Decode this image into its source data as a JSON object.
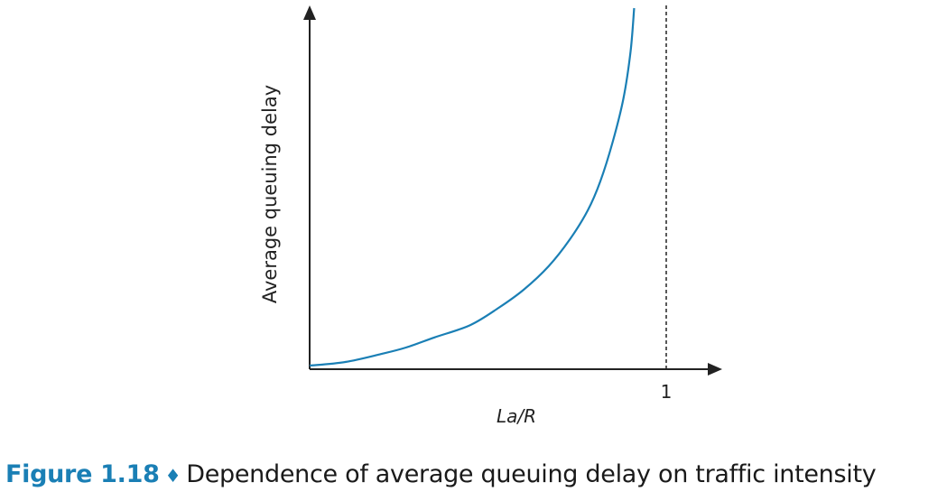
{
  "chart_data": {
    "type": "line",
    "title": "",
    "xlabel": "La/R",
    "ylabel": "Average queuing delay",
    "xlim": [
      0,
      1.16
    ],
    "ylim": [
      0,
      10
    ],
    "x_ticks": [
      {
        "value": 1,
        "label": "1"
      }
    ],
    "vertical_reference_line": {
      "x": 1,
      "style": "dashed"
    },
    "grid": false,
    "series": [
      {
        "color": "#1a7fb5",
        "x": [
          0,
          0.1,
          0.2,
          0.27,
          0.35,
          0.45,
          0.53,
          0.6,
          0.67,
          0.73,
          0.78,
          0.815,
          0.85,
          0.88,
          0.9,
          0.91
        ],
        "y": [
          0.1,
          0.2,
          0.42,
          0.6,
          0.88,
          1.22,
          1.7,
          2.2,
          2.85,
          3.6,
          4.4,
          5.2,
          6.3,
          7.5,
          8.8,
          10
        ]
      }
    ]
  },
  "caption": {
    "figure_label": "Figure 1.18",
    "separator": "♦",
    "text": "Dependence of average queuing delay on traffic intensity"
  }
}
